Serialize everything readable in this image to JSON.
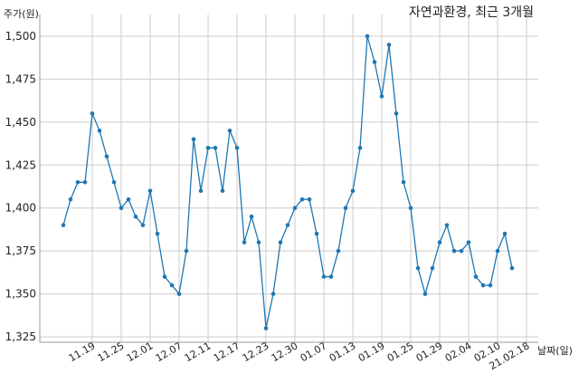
{
  "chart_data": {
    "type": "line",
    "title": "자연과환경, 최근 3개월",
    "ylabel": "주가(원)",
    "xlabel": "날짜(일)",
    "ylim": [
      1325,
      1500
    ],
    "yticks": [
      "1,325",
      "1,350",
      "1,375",
      "1,400",
      "1,425",
      "1,450",
      "1,475",
      "1,500"
    ],
    "ytick_values": [
      1325,
      1350,
      1375,
      1400,
      1425,
      1450,
      1475,
      1500
    ],
    "xticks": [
      "11.19",
      "11.25",
      "12.01",
      "12.07",
      "12.11",
      "12.17",
      "12.23",
      "12.30",
      "01.07",
      "01.13",
      "01.19",
      "01.25",
      "01.29",
      "02.04",
      "02.10",
      "21.02.18"
    ],
    "xtick_index": [
      4,
      8,
      12,
      16,
      20,
      24,
      28,
      32,
      36,
      40,
      44,
      48,
      52,
      56,
      60,
      64
    ],
    "grid": true,
    "color": "#1f77b4",
    "values": [
      1390,
      1405,
      1415,
      1415,
      1455,
      1445,
      1430,
      1415,
      1400,
      1405,
      1395,
      1390,
      1410,
      1385,
      1360,
      1355,
      1350,
      1375,
      1440,
      1410,
      1435,
      1435,
      1410,
      1445,
      1435,
      1380,
      1395,
      1380,
      1330,
      1350,
      1380,
      1390,
      1400,
      1405,
      1405,
      1385,
      1360,
      1360,
      1375,
      1400,
      1410,
      1435,
      1500,
      1485,
      1465,
      1495,
      1455,
      1415,
      1400,
      1365,
      1350,
      1365,
      1380,
      1390,
      1375,
      1375,
      1380,
      1360,
      1355,
      1355,
      1375,
      1385,
      1365
    ]
  }
}
